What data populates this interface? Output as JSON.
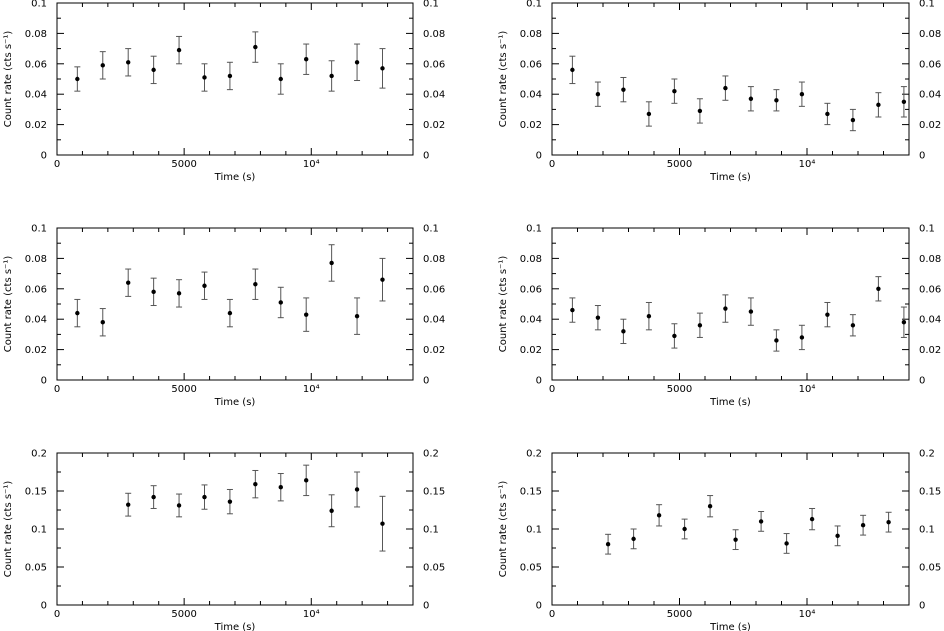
{
  "chart_data": [
    {
      "type": "scatter",
      "xlabel": "Time (s)",
      "ylabel": "Count rate (cts s⁻¹)",
      "xlim": [
        0,
        14000
      ],
      "ylim": [
        0,
        0.1
      ],
      "xticks": [
        0,
        5000,
        10000
      ],
      "xtick_labels": [
        "0",
        "5000",
        "10⁴"
      ],
      "yticks": [
        0,
        0.02,
        0.04,
        0.06,
        0.08,
        0.1
      ],
      "ytick_labels": [
        "0",
        "0.02",
        "0.04",
        "0.06",
        "0.08",
        "0.1"
      ],
      "grid": false,
      "points": [
        {
          "x": 800,
          "y": 0.05,
          "err": 0.008
        },
        {
          "x": 1800,
          "y": 0.059,
          "err": 0.009
        },
        {
          "x": 2800,
          "y": 0.061,
          "err": 0.009
        },
        {
          "x": 3800,
          "y": 0.056,
          "err": 0.009
        },
        {
          "x": 4800,
          "y": 0.069,
          "err": 0.009
        },
        {
          "x": 5800,
          "y": 0.051,
          "err": 0.009
        },
        {
          "x": 6800,
          "y": 0.052,
          "err": 0.009
        },
        {
          "x": 7800,
          "y": 0.071,
          "err": 0.01
        },
        {
          "x": 8800,
          "y": 0.05,
          "err": 0.01
        },
        {
          "x": 9800,
          "y": 0.063,
          "err": 0.01
        },
        {
          "x": 10800,
          "y": 0.052,
          "err": 0.01
        },
        {
          "x": 11800,
          "y": 0.061,
          "err": 0.012
        },
        {
          "x": 12800,
          "y": 0.057,
          "err": 0.013
        }
      ]
    },
    {
      "type": "scatter",
      "xlabel": "Time (s)",
      "ylabel": "Count rate (cts s⁻¹)",
      "xlim": [
        0,
        14000
      ],
      "ylim": [
        0,
        0.1
      ],
      "xticks": [
        0,
        5000,
        10000
      ],
      "xtick_labels": [
        "0",
        "5000",
        "10⁴"
      ],
      "yticks": [
        0,
        0.02,
        0.04,
        0.06,
        0.08,
        0.1
      ],
      "ytick_labels": [
        "0",
        "0.02",
        "0.04",
        "0.06",
        "0.08",
        "0.1"
      ],
      "grid": false,
      "points": [
        {
          "x": 800,
          "y": 0.056,
          "err": 0.009
        },
        {
          "x": 1800,
          "y": 0.04,
          "err": 0.008
        },
        {
          "x": 2800,
          "y": 0.043,
          "err": 0.008
        },
        {
          "x": 3800,
          "y": 0.027,
          "err": 0.008
        },
        {
          "x": 4800,
          "y": 0.042,
          "err": 0.008
        },
        {
          "x": 5800,
          "y": 0.029,
          "err": 0.008
        },
        {
          "x": 6800,
          "y": 0.044,
          "err": 0.008
        },
        {
          "x": 7800,
          "y": 0.037,
          "err": 0.008
        },
        {
          "x": 8800,
          "y": 0.036,
          "err": 0.007
        },
        {
          "x": 9800,
          "y": 0.04,
          "err": 0.008
        },
        {
          "x": 10800,
          "y": 0.027,
          "err": 0.007
        },
        {
          "x": 11800,
          "y": 0.023,
          "err": 0.007
        },
        {
          "x": 12800,
          "y": 0.033,
          "err": 0.008
        },
        {
          "x": 13800,
          "y": 0.035,
          "err": 0.01
        }
      ]
    },
    {
      "type": "scatter",
      "xlabel": "Time (s)",
      "ylabel": "Count rate (cts s⁻¹)",
      "xlim": [
        0,
        14000
      ],
      "ylim": [
        0,
        0.1
      ],
      "xticks": [
        0,
        5000,
        10000
      ],
      "xtick_labels": [
        "0",
        "5000",
        "10⁴"
      ],
      "yticks": [
        0,
        0.02,
        0.04,
        0.06,
        0.08,
        0.1
      ],
      "ytick_labels": [
        "0",
        "0.02",
        "0.04",
        "0.06",
        "0.08",
        "0.1"
      ],
      "grid": false,
      "points": [
        {
          "x": 800,
          "y": 0.044,
          "err": 0.009
        },
        {
          "x": 1800,
          "y": 0.038,
          "err": 0.009
        },
        {
          "x": 2800,
          "y": 0.064,
          "err": 0.009
        },
        {
          "x": 3800,
          "y": 0.058,
          "err": 0.009
        },
        {
          "x": 4800,
          "y": 0.057,
          "err": 0.009
        },
        {
          "x": 5800,
          "y": 0.062,
          "err": 0.009
        },
        {
          "x": 6800,
          "y": 0.044,
          "err": 0.009
        },
        {
          "x": 7800,
          "y": 0.063,
          "err": 0.01
        },
        {
          "x": 8800,
          "y": 0.051,
          "err": 0.01
        },
        {
          "x": 9800,
          "y": 0.043,
          "err": 0.011
        },
        {
          "x": 10800,
          "y": 0.077,
          "err": 0.012
        },
        {
          "x": 11800,
          "y": 0.042,
          "err": 0.012
        },
        {
          "x": 12800,
          "y": 0.066,
          "err": 0.014
        }
      ]
    },
    {
      "type": "scatter",
      "xlabel": "Time (s)",
      "ylabel": "Count rate (cts s⁻¹)",
      "xlim": [
        0,
        14000
      ],
      "ylim": [
        0,
        0.1
      ],
      "xticks": [
        0,
        5000,
        10000
      ],
      "xtick_labels": [
        "0",
        "5000",
        "10⁴"
      ],
      "yticks": [
        0,
        0.02,
        0.04,
        0.06,
        0.08,
        0.1
      ],
      "ytick_labels": [
        "0",
        "0.02",
        "0.04",
        "0.06",
        "0.08",
        "0.1"
      ],
      "grid": false,
      "points": [
        {
          "x": 800,
          "y": 0.046,
          "err": 0.008
        },
        {
          "x": 1800,
          "y": 0.041,
          "err": 0.008
        },
        {
          "x": 2800,
          "y": 0.032,
          "err": 0.008
        },
        {
          "x": 3800,
          "y": 0.042,
          "err": 0.009
        },
        {
          "x": 4800,
          "y": 0.029,
          "err": 0.008
        },
        {
          "x": 5800,
          "y": 0.036,
          "err": 0.008
        },
        {
          "x": 6800,
          "y": 0.047,
          "err": 0.009
        },
        {
          "x": 7800,
          "y": 0.045,
          "err": 0.009
        },
        {
          "x": 8800,
          "y": 0.026,
          "err": 0.007
        },
        {
          "x": 9800,
          "y": 0.028,
          "err": 0.008
        },
        {
          "x": 10800,
          "y": 0.043,
          "err": 0.008
        },
        {
          "x": 11800,
          "y": 0.036,
          "err": 0.007
        },
        {
          "x": 12800,
          "y": 0.06,
          "err": 0.008
        },
        {
          "x": 13800,
          "y": 0.038,
          "err": 0.01
        }
      ]
    },
    {
      "type": "scatter",
      "xlabel": "Time (s)",
      "ylabel": "Count rate (cts s⁻¹)",
      "xlim": [
        0,
        14000
      ],
      "ylim": [
        0,
        0.2
      ],
      "xticks": [
        0,
        5000,
        10000
      ],
      "xtick_labels": [
        "0",
        "5000",
        "10⁴"
      ],
      "yticks": [
        0,
        0.05,
        0.1,
        0.15,
        0.2
      ],
      "ytick_labels": [
        "0",
        "0.05",
        "0.1",
        "0.15",
        "0.2"
      ],
      "grid": false,
      "points": [
        {
          "x": 2800,
          "y": 0.132,
          "err": 0.015
        },
        {
          "x": 3800,
          "y": 0.142,
          "err": 0.015
        },
        {
          "x": 4800,
          "y": 0.131,
          "err": 0.015
        },
        {
          "x": 5800,
          "y": 0.142,
          "err": 0.016
        },
        {
          "x": 6800,
          "y": 0.136,
          "err": 0.016
        },
        {
          "x": 7800,
          "y": 0.159,
          "err": 0.018
        },
        {
          "x": 8800,
          "y": 0.155,
          "err": 0.018
        },
        {
          "x": 9800,
          "y": 0.164,
          "err": 0.02
        },
        {
          "x": 10800,
          "y": 0.124,
          "err": 0.021
        },
        {
          "x": 11800,
          "y": 0.152,
          "err": 0.023
        },
        {
          "x": 12800,
          "y": 0.107,
          "err": 0.036
        }
      ]
    },
    {
      "type": "scatter",
      "xlabel": "Time (s)",
      "ylabel": "Count rate (cts s⁻¹)",
      "xlim": [
        0,
        14000
      ],
      "ylim": [
        0,
        0.2
      ],
      "xticks": [
        0,
        5000,
        10000
      ],
      "xtick_labels": [
        "0",
        "5000",
        "10⁴"
      ],
      "yticks": [
        0,
        0.05,
        0.1,
        0.15,
        0.2
      ],
      "ytick_labels": [
        "0",
        "0.05",
        "0.1",
        "0.15",
        "0.2"
      ],
      "grid": false,
      "points": [
        {
          "x": 2200,
          "y": 0.08,
          "err": 0.013
        },
        {
          "x": 3200,
          "y": 0.087,
          "err": 0.013
        },
        {
          "x": 4200,
          "y": 0.118,
          "err": 0.014
        },
        {
          "x": 5200,
          "y": 0.1,
          "err": 0.013
        },
        {
          "x": 6200,
          "y": 0.13,
          "err": 0.014
        },
        {
          "x": 7200,
          "y": 0.086,
          "err": 0.013
        },
        {
          "x": 8200,
          "y": 0.11,
          "err": 0.013
        },
        {
          "x": 9200,
          "y": 0.081,
          "err": 0.013
        },
        {
          "x": 10200,
          "y": 0.113,
          "err": 0.014
        },
        {
          "x": 11200,
          "y": 0.091,
          "err": 0.013
        },
        {
          "x": 12200,
          "y": 0.105,
          "err": 0.013
        },
        {
          "x": 13200,
          "y": 0.109,
          "err": 0.013
        }
      ]
    }
  ]
}
